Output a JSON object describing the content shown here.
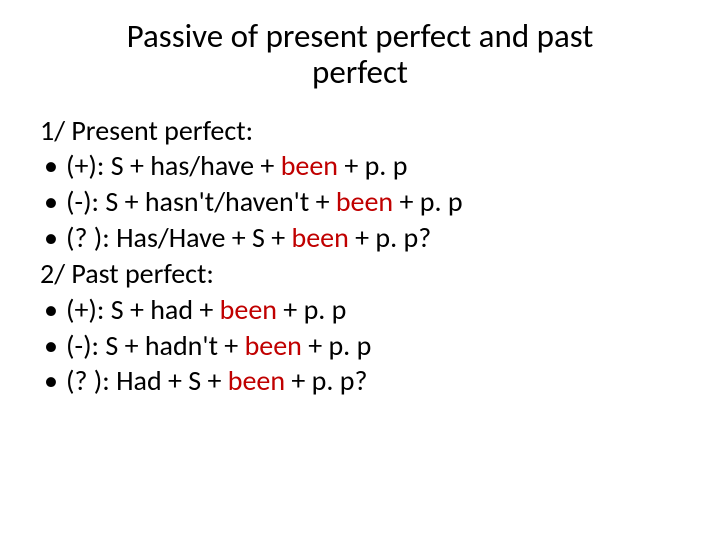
{
  "title_line1": "Passive of present perfect and past",
  "title_line2": "perfect",
  "title_fontsize": 33,
  "title_color": "#000000",
  "body_fontsize": 28,
  "body_color": "#000000",
  "been_color": "#c00000",
  "section1_heading": "1/ Present perfect:",
  "section1": {
    "pos_prefix": "(+): S + has/have + ",
    "neg_prefix": "(-): S + hasn't/haven't + ",
    "q_prefix": "(? ): Has/Have + S + ",
    "been": "been",
    "pos_suffix": " + p. p",
    "neg_suffix": " + p. p",
    "q_suffix": " + p. p?"
  },
  "section2_heading": "2/ Past perfect:",
  "section2": {
    "pos_prefix": "(+): S + had + ",
    "neg_prefix": "(-): S + hadn't + ",
    "q_prefix": "(? ): Had + S + ",
    "been": "been",
    "pos_suffix": " + p. p",
    "neg_suffix": " + p. p",
    "q_suffix": " + p. p?"
  },
  "bullet_char": "•"
}
